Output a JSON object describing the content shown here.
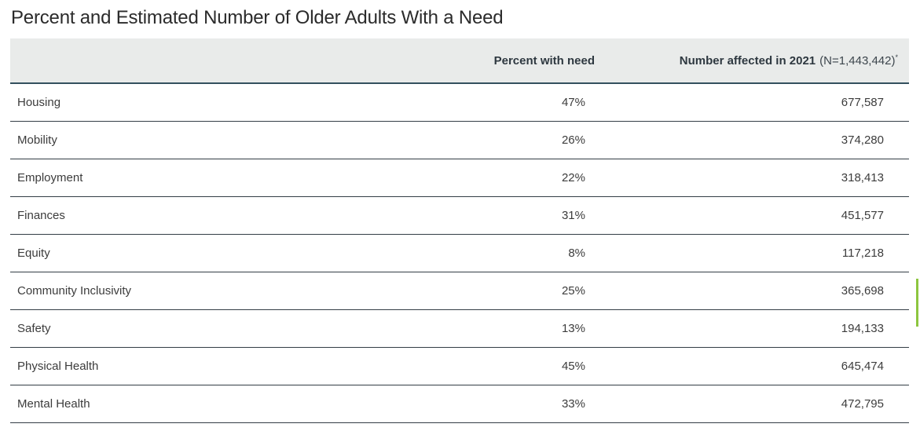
{
  "title": "Percent and Estimated Number of Older Adults With a Need",
  "table": {
    "header": {
      "percent": "Percent with need",
      "number_label": "Number affected in 2021",
      "number_note": "(N=1,443,442)",
      "number_superscript": "*"
    },
    "rows": [
      {
        "category": "Housing",
        "percent": "47%",
        "number": "677,587"
      },
      {
        "category": "Mobility",
        "percent": "26%",
        "number": "374,280"
      },
      {
        "category": "Employment",
        "percent": "22%",
        "number": "318,413"
      },
      {
        "category": "Finances",
        "percent": "31%",
        "number": "451,577"
      },
      {
        "category": "Equity",
        "percent": "8%",
        "number": "117,218"
      },
      {
        "category": "Community Inclusivity",
        "percent": "25%",
        "number": "365,698"
      },
      {
        "category": "Safety",
        "percent": "13%",
        "number": "194,133"
      },
      {
        "category": "Physical Health",
        "percent": "45%",
        "number": "645,474"
      },
      {
        "category": "Mental Health",
        "percent": "33%",
        "number": "472,795"
      }
    ]
  },
  "chart_data": {
    "type": "table",
    "title": "Percent and Estimated Number of Older Adults With a Need",
    "columns": [
      "",
      "Percent with need",
      "Number affected in 2021 (N=1,443,442)*"
    ],
    "categories": [
      "Housing",
      "Mobility",
      "Employment",
      "Finances",
      "Equity",
      "Community Inclusivity",
      "Safety",
      "Physical Health",
      "Mental Health"
    ],
    "series": [
      {
        "name": "Percent with need",
        "unit": "%",
        "values": [
          47,
          26,
          22,
          31,
          8,
          25,
          13,
          45,
          33
        ]
      },
      {
        "name": "Number affected in 2021",
        "values": [
          677587,
          374280,
          318413,
          451577,
          117218,
          365698,
          194133,
          645474,
          472795
        ]
      }
    ],
    "population_note": "N=1,443,442"
  },
  "colors": {
    "header_bg": "#e9ebea",
    "header_border": "#33505e",
    "row_border": "#333d45",
    "accent_green": "#8dc63f"
  }
}
